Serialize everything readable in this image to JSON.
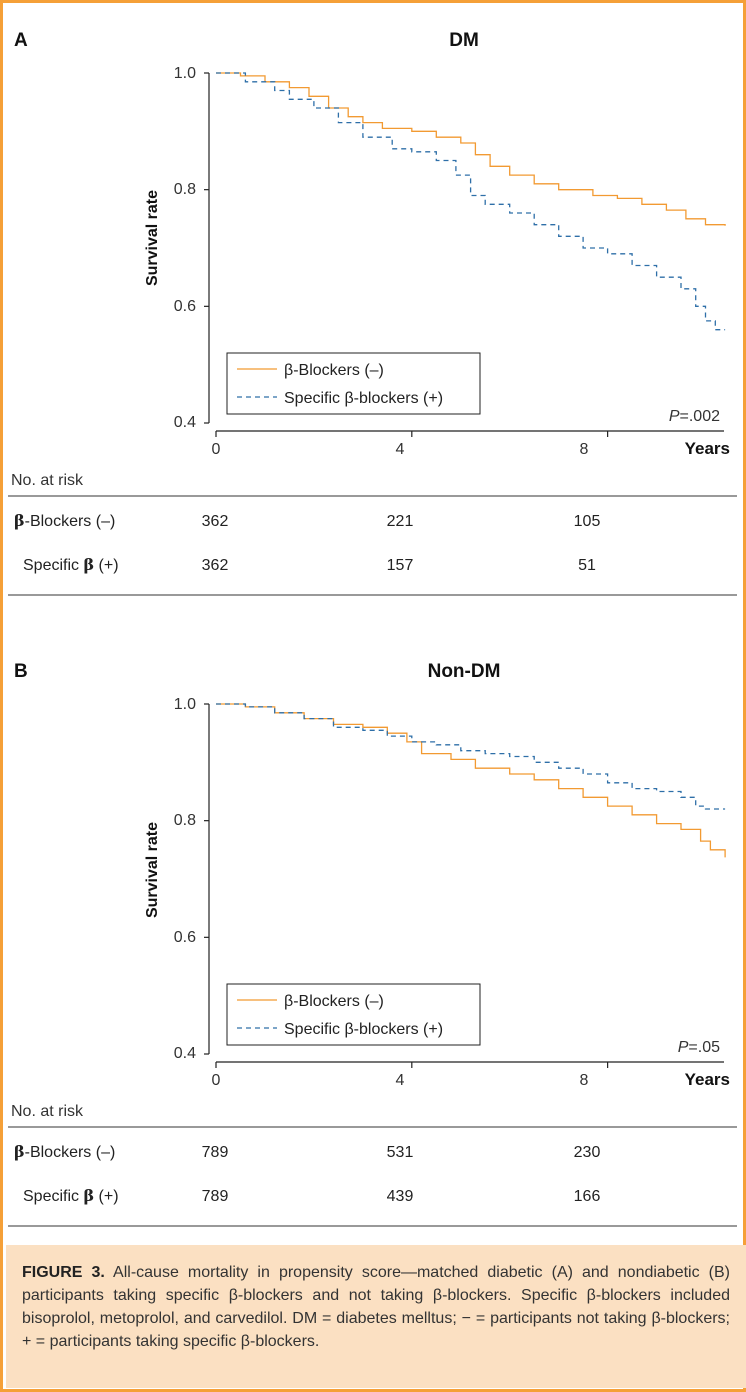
{
  "figure": {
    "label": "FIGURE 3.",
    "caption": "All-cause mortality in propensity score—matched diabetic (A) and nondiabetic (B) participants taking specific β-blockers and not taking β-blockers. Specific β-blockers included bisoprolol, metoprolol, and carvedilol. DM = diabetes melltus; − = participants not taking β-blockers; + = participants taking specific β-blockers."
  },
  "chart_data": [
    {
      "type": "line",
      "panel_letter": "A",
      "title": "DM",
      "xlabel": "Years",
      "ylabel": "Survival rate",
      "xlim": [
        0,
        10.5
      ],
      "ylim": [
        0.4,
        1.0
      ],
      "xticks": [
        0,
        4,
        8
      ],
      "yticks": [
        0.4,
        0.6,
        0.8,
        1.0
      ],
      "ytick_labels": [
        "0.4",
        "0.6",
        "0.8",
        "1.0"
      ],
      "grid": false,
      "legend_position": "bottom-left",
      "p_value": {
        "prefix": "P",
        "value": "=.002"
      },
      "series": [
        {
          "name": "β-Blockers (–)",
          "color": "#f29a32",
          "line_style": "solid",
          "points": [
            [
              0,
              1.0
            ],
            [
              0.5,
              0.995
            ],
            [
              1.0,
              0.985
            ],
            [
              1.5,
              0.975
            ],
            [
              1.9,
              0.96
            ],
            [
              2.3,
              0.94
            ],
            [
              2.7,
              0.925
            ],
            [
              3.0,
              0.915
            ],
            [
              3.4,
              0.905
            ],
            [
              4.0,
              0.9
            ],
            [
              4.5,
              0.89
            ],
            [
              5.0,
              0.88
            ],
            [
              5.3,
              0.86
            ],
            [
              5.6,
              0.84
            ],
            [
              6.0,
              0.825
            ],
            [
              6.5,
              0.81
            ],
            [
              7.0,
              0.8
            ],
            [
              7.7,
              0.79
            ],
            [
              8.2,
              0.785
            ],
            [
              8.7,
              0.775
            ],
            [
              9.2,
              0.765
            ],
            [
              9.6,
              0.75
            ],
            [
              10.0,
              0.74
            ],
            [
              10.4,
              0.738
            ]
          ]
        },
        {
          "name": "Specific β-blockers (+)",
          "color": "#2e6fa8",
          "line_style": "dashed",
          "points": [
            [
              0,
              1.0
            ],
            [
              0.6,
              0.985
            ],
            [
              1.2,
              0.97
            ],
            [
              1.5,
              0.955
            ],
            [
              2.0,
              0.94
            ],
            [
              2.5,
              0.915
            ],
            [
              3.0,
              0.89
            ],
            [
              3.6,
              0.87
            ],
            [
              4.0,
              0.865
            ],
            [
              4.5,
              0.85
            ],
            [
              4.9,
              0.825
            ],
            [
              5.2,
              0.79
            ],
            [
              5.5,
              0.775
            ],
            [
              6.0,
              0.76
            ],
            [
              6.5,
              0.74
            ],
            [
              7.0,
              0.72
            ],
            [
              7.5,
              0.7
            ],
            [
              8.0,
              0.69
            ],
            [
              8.5,
              0.67
            ],
            [
              9.0,
              0.65
            ],
            [
              9.5,
              0.63
            ],
            [
              9.8,
              0.6
            ],
            [
              10.0,
              0.575
            ],
            [
              10.2,
              0.56
            ],
            [
              10.4,
              0.56
            ]
          ]
        }
      ],
      "risk_table": {
        "heading": "No. at risk",
        "rows": [
          {
            "label_greek": "β",
            "label_rest": "-Blockers (–)",
            "values": [
              "362",
              "221",
              "105"
            ]
          },
          {
            "label_pre": "Specific ",
            "label_greek": "β",
            "label_rest": " (+)",
            "values": [
              "362",
              "157",
              "51"
            ]
          }
        ]
      }
    },
    {
      "type": "line",
      "panel_letter": "B",
      "title": "Non-DM",
      "xlabel": "Years",
      "ylabel": "Survival rate",
      "xlim": [
        0,
        10.5
      ],
      "ylim": [
        0.4,
        1.0
      ],
      "xticks": [
        0,
        4,
        8
      ],
      "yticks": [
        0.4,
        0.6,
        0.8,
        1.0
      ],
      "ytick_labels": [
        "0.4",
        "0.6",
        "0.8",
        "1.0"
      ],
      "grid": false,
      "legend_position": "bottom-left",
      "p_value": {
        "prefix": "P",
        "value": "=.05"
      },
      "series": [
        {
          "name": "β-Blockers (–)",
          "color": "#f29a32",
          "line_style": "solid",
          "points": [
            [
              0,
              1.0
            ],
            [
              0.6,
              0.995
            ],
            [
              1.2,
              0.985
            ],
            [
              1.8,
              0.975
            ],
            [
              2.4,
              0.965
            ],
            [
              3.0,
              0.96
            ],
            [
              3.5,
              0.95
            ],
            [
              3.9,
              0.935
            ],
            [
              4.2,
              0.915
            ],
            [
              4.8,
              0.905
            ],
            [
              5.3,
              0.89
            ],
            [
              6.0,
              0.88
            ],
            [
              6.5,
              0.87
            ],
            [
              7.0,
              0.855
            ],
            [
              7.5,
              0.84
            ],
            [
              8.0,
              0.825
            ],
            [
              8.5,
              0.81
            ],
            [
              9.0,
              0.795
            ],
            [
              9.5,
              0.785
            ],
            [
              9.9,
              0.765
            ],
            [
              10.1,
              0.75
            ],
            [
              10.4,
              0.737
            ]
          ]
        },
        {
          "name": "Specific β-blockers (+)",
          "color": "#2e6fa8",
          "line_style": "dashed",
          "points": [
            [
              0,
              1.0
            ],
            [
              0.6,
              0.995
            ],
            [
              1.2,
              0.985
            ],
            [
              1.8,
              0.975
            ],
            [
              2.4,
              0.96
            ],
            [
              3.0,
              0.955
            ],
            [
              3.5,
              0.945
            ],
            [
              4.0,
              0.935
            ],
            [
              4.5,
              0.93
            ],
            [
              5.0,
              0.92
            ],
            [
              5.5,
              0.915
            ],
            [
              6.0,
              0.91
            ],
            [
              6.5,
              0.9
            ],
            [
              7.0,
              0.89
            ],
            [
              7.5,
              0.88
            ],
            [
              8.0,
              0.865
            ],
            [
              8.5,
              0.855
            ],
            [
              9.0,
              0.85
            ],
            [
              9.5,
              0.84
            ],
            [
              9.8,
              0.825
            ],
            [
              10.0,
              0.82
            ],
            [
              10.4,
              0.82
            ]
          ]
        }
      ],
      "risk_table": {
        "heading": "No. at risk",
        "rows": [
          {
            "label_greek": "β",
            "label_rest": "-Blockers (–)",
            "values": [
              "789",
              "531",
              "230"
            ]
          },
          {
            "label_pre": "Specific ",
            "label_greek": "β",
            "label_rest": " (+)",
            "values": [
              "789",
              "439",
              "166"
            ]
          }
        ]
      }
    }
  ]
}
